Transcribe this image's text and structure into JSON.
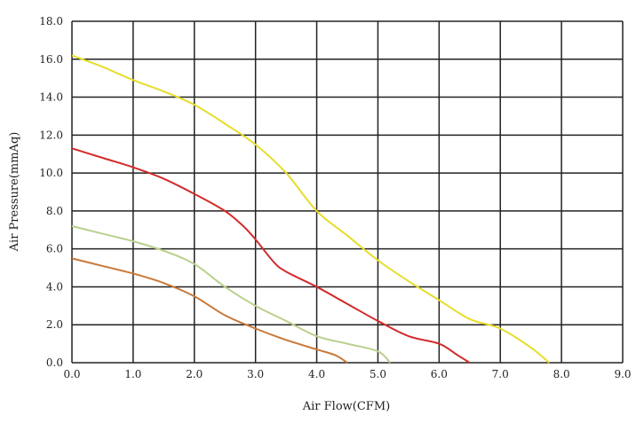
{
  "chart_data": {
    "type": "line",
    "title": "",
    "xlabel": "Air Flow(CFM)",
    "ylabel": "Air Pressure(mmAq)",
    "xlim": [
      0,
      9
    ],
    "ylim": [
      0,
      18
    ],
    "grid": true,
    "x_ticks": [
      "0.0",
      "1.0",
      "2.0",
      "3.0",
      "4.0",
      "5.0",
      "6.0",
      "7.0",
      "8.0",
      "9.0"
    ],
    "y_ticks": [
      "0.0",
      "2.0",
      "4.0",
      "6.0",
      "8.0",
      "10.0",
      "12.0",
      "14.0",
      "16.0",
      "18.0"
    ],
    "series": [
      {
        "name": "yellow",
        "color": "#e6dd2a",
        "x": [
          0,
          0.5,
          1,
          1.5,
          2,
          2.5,
          3,
          3.5,
          4,
          4.5,
          5,
          5.5,
          6,
          6.5,
          7,
          7.5,
          7.8
        ],
        "y": [
          16.2,
          15.6,
          14.9,
          14.3,
          13.6,
          12.6,
          11.5,
          10.0,
          8.0,
          6.7,
          5.4,
          4.3,
          3.3,
          2.3,
          1.8,
          0.8,
          0
        ]
      },
      {
        "name": "red",
        "color": "#d22a2a",
        "x": [
          0,
          0.5,
          1,
          1.5,
          2,
          2.5,
          2.8,
          3,
          3.3,
          3.5,
          4,
          4.5,
          5,
          5.5,
          6,
          6.3,
          6.5
        ],
        "y": [
          11.3,
          10.8,
          10.3,
          9.7,
          8.9,
          8.0,
          7.2,
          6.5,
          5.3,
          4.8,
          4.0,
          3.1,
          2.2,
          1.4,
          1.0,
          0.4,
          0
        ]
      },
      {
        "name": "green",
        "color": "#b9d08e",
        "x": [
          0,
          0.5,
          1,
          1.5,
          2,
          2.5,
          3,
          3.5,
          4,
          4.5,
          5,
          5.2
        ],
        "y": [
          7.2,
          6.8,
          6.4,
          5.9,
          5.2,
          4.0,
          3.0,
          2.2,
          1.4,
          1.0,
          0.6,
          0
        ]
      },
      {
        "name": "orange",
        "color": "#c8793a",
        "x": [
          0,
          0.5,
          1,
          1.5,
          2,
          2.5,
          3,
          3.5,
          4,
          4.3,
          4.5
        ],
        "y": [
          5.5,
          5.1,
          4.7,
          4.2,
          3.5,
          2.5,
          1.8,
          1.2,
          0.7,
          0.4,
          0
        ]
      }
    ]
  }
}
